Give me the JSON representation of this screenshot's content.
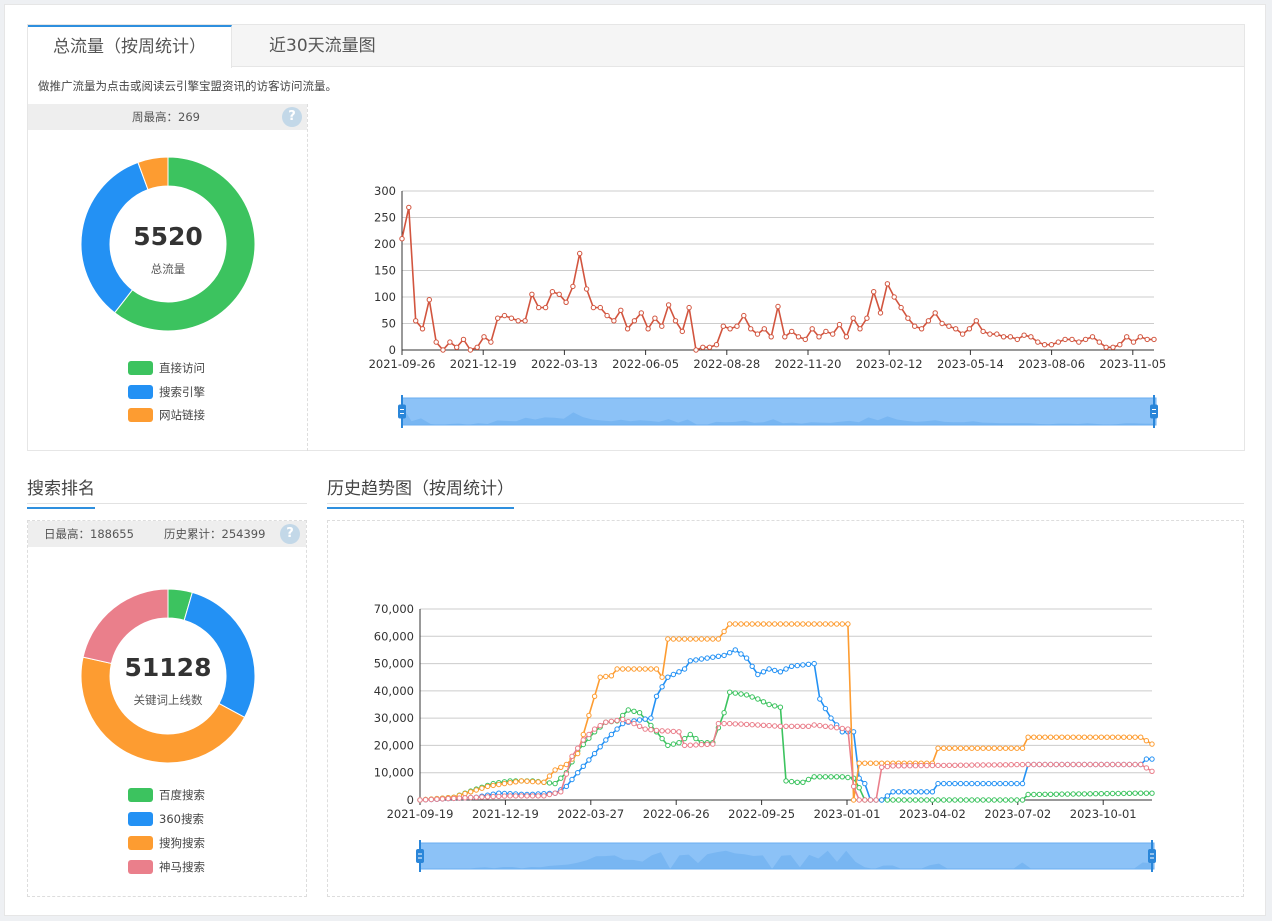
{
  "tabs": [
    {
      "label": "总流量（按周统计）",
      "active": true
    },
    {
      "label": "近30天流量图",
      "active": false
    }
  ],
  "top_description": "做推广流量为点击或阅读云引擎宝盟资讯的访客访问流量。",
  "traffic_summary": {
    "weekly_max_label": "周最高：269",
    "help_glyph": "?",
    "total_value": "5520",
    "total_label": "总流量",
    "legend": [
      {
        "label": "直接访问",
        "color": "#3cc35f"
      },
      {
        "label": "搜索引擎",
        "color": "#2391f4"
      },
      {
        "label": "网站链接",
        "color": "#fd9c31"
      }
    ]
  },
  "ranking_section": {
    "title": "搜索排名",
    "daily_max_label": "日最高：188655",
    "history_total_label": "历史累计：254399",
    "help_glyph": "?",
    "total_value": "51128",
    "total_label": "关键词上线数",
    "legend": [
      {
        "label": "百度搜索",
        "color": "#3cc35f"
      },
      {
        "label": "360搜索",
        "color": "#2391f4"
      },
      {
        "label": "搜狗搜索",
        "color": "#fd9c31"
      },
      {
        "label": "神马搜索",
        "color": "#ea7f8b"
      }
    ]
  },
  "trend_section": {
    "title": "历史趋势图（按周统计）"
  },
  "chart_data": [
    {
      "type": "pie",
      "subtype": "donut",
      "categories": [
        "直接访问",
        "搜索引擎",
        "网站链接"
      ],
      "values": [
        3340,
        1870,
        310
      ],
      "colors": [
        "#3cc35f",
        "#2391f4",
        "#fd9c31"
      ]
    },
    {
      "type": "line",
      "x_ticks": [
        "2021-09-26",
        "2021-12-19",
        "2022-03-13",
        "2022-06-05",
        "2022-08-28",
        "2022-11-20",
        "2023-02-12",
        "2023-05-14",
        "2023-08-06",
        "2023-11-05"
      ],
      "ylim": [
        0,
        300
      ],
      "y_ticks": [
        0,
        50,
        100,
        150,
        200,
        250,
        300
      ],
      "grid": true,
      "has_zoom_slider": true,
      "series": [
        {
          "color": "#d2553f",
          "values": [
            210,
            269,
            55,
            40,
            95,
            15,
            0,
            15,
            5,
            20,
            0,
            5,
            25,
            15,
            60,
            65,
            60,
            55,
            55,
            105,
            80,
            80,
            110,
            105,
            90,
            120,
            182,
            115,
            80,
            80,
            65,
            55,
            75,
            40,
            55,
            70,
            40,
            60,
            45,
            85,
            55,
            35,
            80,
            0,
            5,
            5,
            10,
            45,
            40,
            45,
            65,
            40,
            30,
            40,
            25,
            82,
            25,
            35,
            25,
            20,
            40,
            25,
            35,
            30,
            48,
            25,
            60,
            40,
            60,
            110,
            70,
            125,
            100,
            80,
            60,
            45,
            40,
            55,
            70,
            50,
            45,
            40,
            30,
            40,
            55,
            35,
            30,
            30,
            25,
            25,
            20,
            28,
            25,
            15,
            10,
            10,
            15,
            20,
            20,
            15,
            20,
            25,
            15,
            5,
            5,
            10,
            25,
            15,
            25,
            20,
            20
          ]
        }
      ]
    },
    {
      "type": "pie",
      "subtype": "donut",
      "categories": [
        "百度搜索",
        "360搜索",
        "搜狗搜索",
        "神马搜索"
      ],
      "values": [
        2300,
        14500,
        23300,
        11000
      ],
      "colors": [
        "#3cc35f",
        "#2391f4",
        "#fd9c31",
        "#ea7f8b"
      ]
    },
    {
      "type": "line",
      "x_ticks": [
        "2021-09-19",
        "2021-12-19",
        "2022-03-27",
        "2022-06-26",
        "2022-09-25",
        "2023-01-01",
        "2023-04-02",
        "2023-07-02",
        "2023-10-01"
      ],
      "ylim": [
        0,
        70000
      ],
      "y_ticks": [
        "0",
        "10,000",
        "20,000",
        "30,000",
        "40,000",
        "50,000",
        "60,000",
        "70,000"
      ],
      "grid": true,
      "has_zoom_slider": true,
      "series": [
        {
          "name": "百度搜索",
          "color": "#3cc35f",
          "points": [
            [
              0,
              0
            ],
            [
              6,
              1000
            ],
            [
              10,
              4000
            ],
            [
              13,
              6000
            ],
            [
              16,
              7000
            ],
            [
              20,
              7000
            ],
            [
              24,
              6000
            ],
            [
              26,
              10000
            ],
            [
              28,
              18000
            ],
            [
              31,
              25000
            ],
            [
              33,
              28500
            ],
            [
              35,
              29000
            ],
            [
              37,
              33000
            ],
            [
              39,
              32000
            ],
            [
              42,
              25000
            ],
            [
              44,
              20000
            ],
            [
              46,
              21000
            ],
            [
              48,
              24000
            ],
            [
              50,
              21000
            ],
            [
              52,
              21000
            ],
            [
              54,
              32000
            ],
            [
              55,
              39500
            ],
            [
              58,
              38500
            ],
            [
              60,
              37000
            ],
            [
              62,
              35000
            ],
            [
              64,
              34000
            ],
            [
              65,
              7000
            ],
            [
              67,
              6500
            ],
            [
              68,
              6500
            ],
            [
              70,
              8500
            ],
            [
              75,
              8500
            ],
            [
              77,
              8000
            ],
            [
              78,
              4500
            ],
            [
              79,
              0
            ],
            [
              84,
              0
            ],
            [
              107,
              0
            ],
            [
              108,
              2000
            ],
            [
              128,
              2500
            ],
            [
              130,
              2500
            ]
          ]
        },
        {
          "name": "360搜索",
          "color": "#2391f4",
          "points": [
            [
              0,
              0
            ],
            [
              10,
              1000
            ],
            [
              14,
              2500
            ],
            [
              19,
              2000
            ],
            [
              24,
              2500
            ],
            [
              26,
              5000
            ],
            [
              28,
              10000
            ],
            [
              31,
              17000
            ],
            [
              33,
              22000
            ],
            [
              36,
              28000
            ],
            [
              38,
              29000
            ],
            [
              41,
              30000
            ],
            [
              42,
              38000
            ],
            [
              44,
              45000
            ],
            [
              47,
              48000
            ],
            [
              48,
              51000
            ],
            [
              51,
              52000
            ],
            [
              54,
              53000
            ],
            [
              56,
              55000
            ],
            [
              58,
              52000
            ],
            [
              60,
              46000
            ],
            [
              62,
              48000
            ],
            [
              64,
              47000
            ],
            [
              66,
              49000
            ],
            [
              70,
              50000
            ],
            [
              71,
              37000
            ],
            [
              73,
              30000
            ],
            [
              75,
              25000
            ],
            [
              77,
              25000
            ],
            [
              78,
              8000
            ],
            [
              79,
              6000
            ],
            [
              80,
              0
            ],
            [
              82,
              0
            ],
            [
              84,
              3000
            ],
            [
              91,
              3000
            ],
            [
              92,
              6000
            ],
            [
              107,
              6000
            ],
            [
              108,
              13000
            ],
            [
              128,
              13000
            ],
            [
              129,
              15000
            ],
            [
              130,
              15000
            ]
          ]
        },
        {
          "name": "搜狗搜索",
          "color": "#fd9c31",
          "points": [
            [
              0,
              0
            ],
            [
              6,
              1000
            ],
            [
              12,
              5000
            ],
            [
              18,
              7000
            ],
            [
              22,
              6500
            ],
            [
              24,
              11000
            ],
            [
              26,
              13000
            ],
            [
              28,
              17000
            ],
            [
              30,
              31000
            ],
            [
              32,
              45000
            ],
            [
              34,
              45500
            ],
            [
              35,
              48000
            ],
            [
              42,
              48000
            ],
            [
              43,
              45000
            ],
            [
              44,
              59000
            ],
            [
              53,
              59000
            ],
            [
              55,
              64500
            ],
            [
              73,
              64500
            ],
            [
              76,
              64500
            ],
            [
              77,
              0
            ],
            [
              78,
              13500
            ],
            [
              91,
              13500
            ],
            [
              92,
              19000
            ],
            [
              107,
              19000
            ],
            [
              108,
              23000
            ],
            [
              128,
              23000
            ],
            [
              130,
              20500
            ]
          ]
        },
        {
          "name": "神马搜索",
          "color": "#ea7f8b",
          "points": [
            [
              0,
              0
            ],
            [
              10,
              1000
            ],
            [
              16,
              1500
            ],
            [
              22,
              1500
            ],
            [
              25,
              3000
            ],
            [
              27,
              16000
            ],
            [
              29,
              22000
            ],
            [
              31,
              26000
            ],
            [
              33,
              28500
            ],
            [
              36,
              29500
            ],
            [
              38,
              28000
            ],
            [
              40,
              26000
            ],
            [
              42,
              25500
            ],
            [
              46,
              25000
            ],
            [
              47,
              20000
            ],
            [
              52,
              20500
            ],
            [
              53,
              28000
            ],
            [
              55,
              28000
            ],
            [
              60,
              27500
            ],
            [
              64,
              27000
            ],
            [
              69,
              27000
            ],
            [
              70,
              27500
            ],
            [
              76,
              26000
            ],
            [
              77,
              5000
            ],
            [
              78,
              0
            ],
            [
              81,
              0
            ],
            [
              82,
              12000
            ],
            [
              84,
              12500
            ],
            [
              108,
              13000
            ],
            [
              128,
              13000
            ],
            [
              130,
              10500
            ]
          ]
        }
      ]
    }
  ]
}
